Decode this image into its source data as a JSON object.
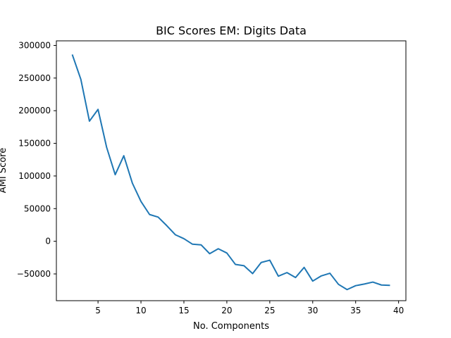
{
  "chart_data": {
    "type": "line",
    "title": "BIC Scores EM: Digits Data",
    "xlabel": "No. Components",
    "ylabel": "AMI Score",
    "xlim": [
      0.15,
      40.85
    ],
    "ylim": [
      -91000,
      307000
    ],
    "xticks": [
      5,
      10,
      15,
      20,
      25,
      30,
      35,
      40
    ],
    "yticks": [
      -50000,
      0,
      50000,
      100000,
      150000,
      200000,
      250000,
      300000
    ],
    "grid": false,
    "series": [
      {
        "color": "#1f77b4",
        "x": [
          2,
          3,
          4,
          5,
          6,
          7,
          8,
          9,
          10,
          11,
          12,
          13,
          14,
          15,
          16,
          17,
          18,
          19,
          20,
          21,
          22,
          23,
          24,
          25,
          26,
          27,
          28,
          29,
          30,
          31,
          32,
          33,
          34,
          35,
          36,
          37,
          38,
          39
        ],
        "values": [
          286000,
          248000,
          184000,
          202000,
          144000,
          102000,
          131000,
          89000,
          61000,
          41000,
          37000,
          24000,
          10000,
          4000,
          -4500,
          -5500,
          -19000,
          -11500,
          -18000,
          -35500,
          -37500,
          -49500,
          -32500,
          -29000,
          -53500,
          -48000,
          -55500,
          -40000,
          -61000,
          -53000,
          -49000,
          -66000,
          -74000,
          -68000,
          -65500,
          -62500,
          -67000,
          -67500
        ]
      }
    ]
  }
}
